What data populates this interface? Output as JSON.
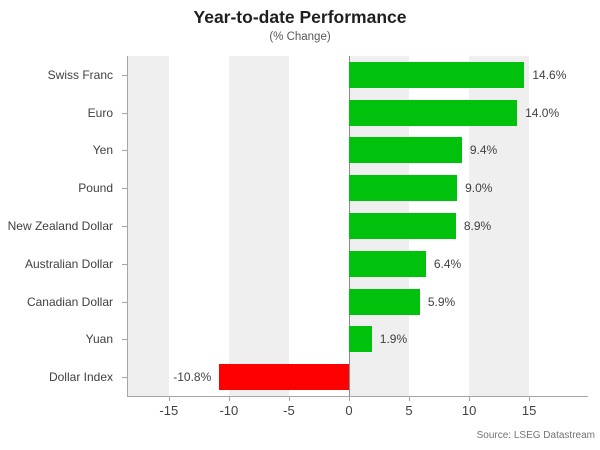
{
  "header": {
    "title": "Year-to-date Performance",
    "subtitle": "(% Change)"
  },
  "footer": {
    "source": "Source: LSEG Datastream"
  },
  "colors": {
    "positive_bar": "#00c20d",
    "negative_bar": "#ff0000",
    "band": "#efefef",
    "axis": "#a6a6a6",
    "zero_line": "#8c8c8c",
    "label_text": "#404040",
    "source_text": "#737373"
  },
  "chart_data": {
    "type": "bar",
    "orientation": "horizontal",
    "title": "Year-to-date Performance",
    "subtitle": "(% Change)",
    "categories": [
      "Swiss Franc",
      "Euro",
      "Yen",
      "Pound",
      "New Zealand Dollar",
      "Australian Dollar",
      "Canadian Dollar",
      "Yuan",
      "Dollar Index"
    ],
    "values": [
      14.6,
      14.0,
      9.4,
      9.0,
      8.9,
      6.4,
      5.9,
      1.9,
      -10.8
    ],
    "value_labels": [
      "14.6%",
      "14.0%",
      "9.4%",
      "9.0%",
      "8.9%",
      "6.4%",
      "5.9%",
      "1.9%",
      "-10.8%"
    ],
    "xlabel": "",
    "ylabel": "",
    "xticks": [
      -15,
      -10,
      -5,
      0,
      5,
      10,
      15
    ],
    "xtick_labels": [
      "-15",
      "-10",
      "-5",
      "0",
      "5",
      "10",
      "15"
    ],
    "xlim": [
      -18.4,
      19.9
    ],
    "bands": [
      [
        -18.4,
        -15
      ],
      [
        -10,
        -5
      ],
      [
        0,
        5
      ],
      [
        10,
        15
      ]
    ],
    "grid": "alternating vertical bands",
    "legend": "none"
  }
}
